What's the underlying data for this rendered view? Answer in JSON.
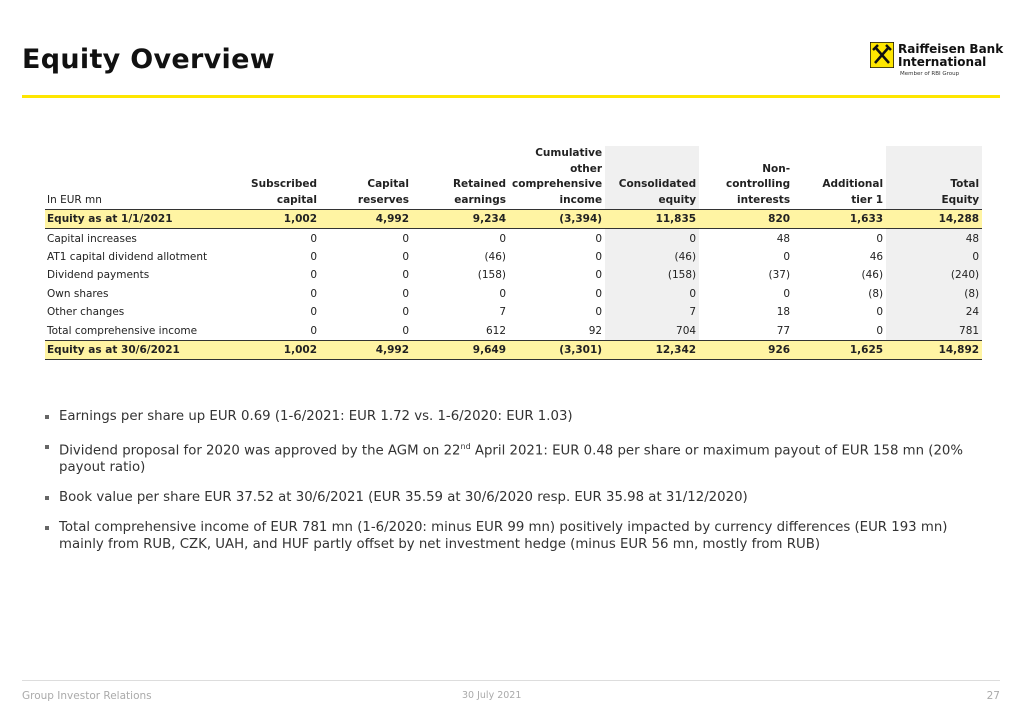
{
  "header": {
    "title": "Equity Overview",
    "logo_lines": [
      "Raiffeisen Bank",
      "International"
    ],
    "logo_sub": "Member of RBI Group"
  },
  "table": {
    "unit_label": "In EUR mn",
    "columns": [
      [
        "Subscribed",
        "capital"
      ],
      [
        "Capital",
        "reserves"
      ],
      [
        "Retained",
        "earnings"
      ],
      [
        "Cumulative",
        "other",
        "comprehensive",
        "income"
      ],
      [
        "Consolidated",
        "equity"
      ],
      [
        "Non-",
        "controlling",
        "interests"
      ],
      [
        "Additional",
        "tier 1"
      ],
      [
        "Total",
        "Equity"
      ]
    ],
    "rows": [
      {
        "label": "Equity as at 1/1/2021",
        "cells": [
          "1,002",
          "4,992",
          "9,234",
          "(3,394)",
          "11,835",
          "820",
          "1,633",
          "14,288"
        ]
      },
      {
        "label": "Capital increases",
        "cells": [
          "0",
          "0",
          "0",
          "0",
          "0",
          "48",
          "0",
          "48"
        ]
      },
      {
        "label": "AT1 capital dividend allotment",
        "cells": [
          "0",
          "0",
          "(46)",
          "0",
          "(46)",
          "0",
          "46",
          "0"
        ]
      },
      {
        "label": "Dividend payments",
        "cells": [
          "0",
          "0",
          "(158)",
          "0",
          "(158)",
          "(37)",
          "(46)",
          "(240)"
        ]
      },
      {
        "label": "Own shares",
        "cells": [
          "0",
          "0",
          "0",
          "0",
          "0",
          "0",
          "(8)",
          "(8)"
        ]
      },
      {
        "label": "Other changes",
        "cells": [
          "0",
          "0",
          "7",
          "0",
          "7",
          "18",
          "0",
          "24"
        ]
      },
      {
        "label": "Total comprehensive income",
        "cells": [
          "0",
          "0",
          "612",
          "92",
          "704",
          "77",
          "0",
          "781"
        ]
      },
      {
        "label": "Equity as at 30/6/2021",
        "cells": [
          "1,002",
          "4,992",
          "9,649",
          "(3,301)",
          "12,342",
          "926",
          "1,625",
          "14,892"
        ]
      }
    ]
  },
  "bullets": [
    [
      "Earnings per share up EUR 0.69 (1-6/2021: EUR 1.72 vs. 1-6/2020: EUR 1.03)"
    ],
    [
      "Dividend proposal for 2020 was approved by the AGM on 22",
      "nd",
      " April 2021: EUR 0.48 per share or maximum payout of EUR 158 mn (20% payout ratio)"
    ],
    [
      "Book value per share EUR 37.52 at 30/6/2021 (EUR 35.59 at 30/6/2020 resp. EUR 35.98 at 31/12/2020)"
    ],
    [
      "Total comprehensive income of EUR 781 mn (1-6/2020: minus EUR 99 mn) positively impacted by currency differences (EUR 193 mn) mainly from RUB, CZK, UAH, and HUF partly offset by net investment hedge (minus EUR 56 mn, mostly from RUB)"
    ]
  ],
  "footer": {
    "left": "Group Investor Relations",
    "center": "30 July 2021",
    "page": "27"
  }
}
